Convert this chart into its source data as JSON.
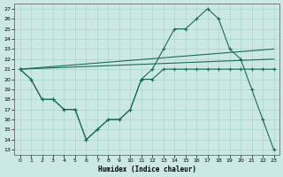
{
  "xlabel": "Humidex (Indice chaleur)",
  "bg_color": "#cce8e4",
  "grid_color": "#aad4ce",
  "line_color": "#1a6b5a",
  "xlim": [
    -0.5,
    23.5
  ],
  "ylim": [
    12.5,
    27.5
  ],
  "xticks": [
    0,
    1,
    2,
    3,
    4,
    5,
    6,
    7,
    8,
    9,
    10,
    11,
    12,
    13,
    14,
    15,
    16,
    17,
    18,
    19,
    20,
    21,
    22,
    23
  ],
  "yticks": [
    13,
    14,
    15,
    16,
    17,
    18,
    19,
    20,
    21,
    22,
    23,
    24,
    25,
    26,
    27
  ],
  "curve_x": [
    0,
    1,
    2,
    3,
    4,
    5,
    6,
    7,
    8,
    9,
    10,
    11,
    12,
    13,
    14,
    15,
    16,
    17,
    18,
    19,
    20,
    21,
    22,
    23
  ],
  "curve_y": [
    21,
    20,
    18,
    18,
    17,
    17,
    14,
    15,
    16,
    16,
    17,
    20,
    21,
    23,
    25,
    25,
    26,
    27,
    26,
    23,
    22,
    19,
    16,
    13
  ],
  "lower_x": [
    0,
    1,
    2,
    3,
    4,
    5,
    6,
    7,
    8,
    9,
    10,
    11,
    12,
    13,
    14,
    15,
    16,
    17,
    18,
    19,
    20,
    21,
    22,
    23
  ],
  "lower_y": [
    21,
    20,
    18,
    18,
    17,
    17,
    14,
    15,
    16,
    16,
    17,
    20,
    20,
    21,
    21,
    21,
    21,
    21,
    21,
    21,
    21,
    21,
    21,
    21
  ],
  "trend1_x": [
    0,
    23
  ],
  "trend1_y": [
    21,
    23
  ],
  "trend2_x": [
    0,
    23
  ],
  "trend2_y": [
    21,
    22
  ]
}
